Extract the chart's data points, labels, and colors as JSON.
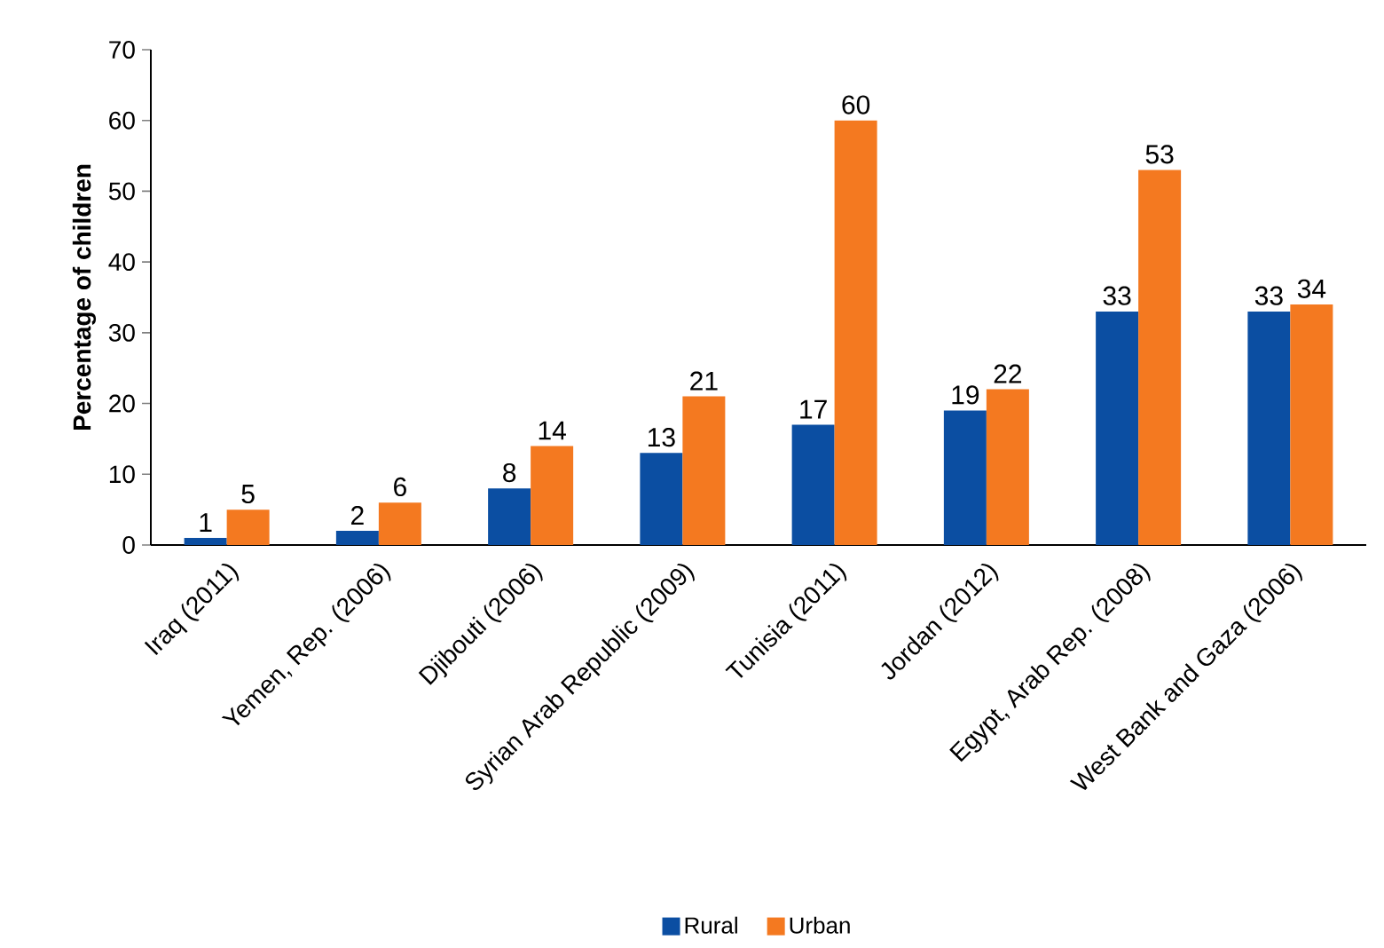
{
  "chart_data": {
    "type": "bar",
    "ylabel": "Percentage of children",
    "categories": [
      "Iraq (2011)",
      "Yemen, Rep. (2006)",
      "Djibouti (2006)",
      "Syrian Arab Republic (2009)",
      "Tunisia (2011)",
      "Jordan (2012)",
      "Egypt, Arab Rep. (2008)",
      "West Bank and Gaza (2006)"
    ],
    "series": [
      {
        "name": "Rural",
        "color": "#0b4ea2",
        "values": [
          1,
          2,
          8,
          13,
          17,
          19,
          33,
          33
        ]
      },
      {
        "name": "Urban",
        "color": "#f47920",
        "values": [
          5,
          6,
          14,
          21,
          60,
          22,
          53,
          34
        ]
      }
    ],
    "ylim": [
      0,
      70
    ],
    "yticks": [
      0,
      10,
      20,
      30,
      40,
      50,
      60,
      70
    ],
    "data_labels": true,
    "legend": "bottom",
    "grid": false
  }
}
